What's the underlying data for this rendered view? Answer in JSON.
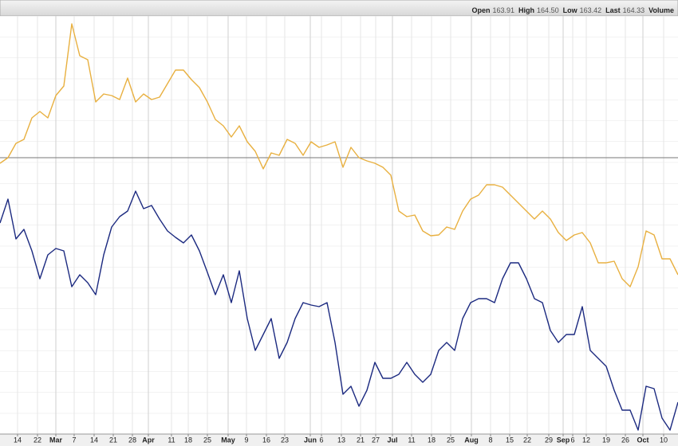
{
  "header": {
    "items": [
      {
        "label": "Open",
        "value": "163.91"
      },
      {
        "label": "High",
        "value": "164.50"
      },
      {
        "label": "Low",
        "value": "163.42"
      },
      {
        "label": "Last",
        "value": "164.33"
      },
      {
        "label": "Volume"
      }
    ]
  },
  "chart_data": {
    "type": "line",
    "xlim": [
      0,
      85
    ],
    "ylim": [
      0,
      525
    ],
    "grid": true,
    "reference_line": 347,
    "xticks": [
      {
        "value": 2.2,
        "label": "14"
      },
      {
        "value": 4.7,
        "label": "22"
      },
      {
        "value": 7.0,
        "label": "Mar"
      },
      {
        "value": 9.3,
        "label": "7"
      },
      {
        "value": 11.8,
        "label": "14"
      },
      {
        "value": 14.2,
        "label": "21"
      },
      {
        "value": 16.6,
        "label": "28"
      },
      {
        "value": 18.6,
        "label": "Apr"
      },
      {
        "value": 21.5,
        "label": "11"
      },
      {
        "value": 23.6,
        "label": "18"
      },
      {
        "value": 26.0,
        "label": "25"
      },
      {
        "value": 28.6,
        "label": "May"
      },
      {
        "value": 30.9,
        "label": "9"
      },
      {
        "value": 33.4,
        "label": "16"
      },
      {
        "value": 35.7,
        "label": "23"
      },
      {
        "value": 38.9,
        "label": "Jun"
      },
      {
        "value": 40.3,
        "label": "6"
      },
      {
        "value": 42.8,
        "label": "13"
      },
      {
        "value": 45.2,
        "label": "21"
      },
      {
        "value": 47.1,
        "label": "27"
      },
      {
        "value": 49.2,
        "label": "Jul"
      },
      {
        "value": 51.6,
        "label": "11"
      },
      {
        "value": 54.1,
        "label": "18"
      },
      {
        "value": 56.5,
        "label": "25"
      },
      {
        "value": 59.1,
        "label": "Aug"
      },
      {
        "value": 61.5,
        "label": "8"
      },
      {
        "value": 63.9,
        "label": "15"
      },
      {
        "value": 66.1,
        "label": "22"
      },
      {
        "value": 68.8,
        "label": "29"
      },
      {
        "value": 70.6,
        "label": "Sep"
      },
      {
        "value": 71.8,
        "label": "6"
      },
      {
        "value": 73.5,
        "label": "12"
      },
      {
        "value": 76.0,
        "label": "19"
      },
      {
        "value": 78.4,
        "label": "26"
      },
      {
        "value": 80.6,
        "label": "Oct"
      },
      {
        "value": 83.2,
        "label": "10"
      }
    ],
    "series": [
      {
        "color": "#e8b040",
        "values": [
          340,
          347,
          365,
          370,
          397,
          405,
          397,
          425,
          437,
          515,
          475,
          470,
          417,
          427,
          425,
          420,
          447,
          417,
          427,
          420,
          423,
          440,
          457,
          457,
          445,
          435,
          417,
          395,
          387,
          373,
          387,
          367,
          355,
          333,
          353,
          350,
          370,
          365,
          350,
          367,
          360,
          363,
          367,
          335,
          360,
          347,
          343,
          340,
          335,
          325,
          280,
          273,
          275,
          255,
          249,
          250,
          260,
          257,
          280,
          295,
          300,
          313,
          313,
          310,
          300,
          290,
          280,
          270,
          280,
          270,
          253,
          243,
          250,
          253,
          240,
          215,
          215,
          217,
          195,
          185,
          210,
          255,
          250,
          220,
          220,
          200
        ]
      },
      {
        "color": "#1c2a80",
        "values": [
          265,
          295,
          245,
          257,
          230,
          195,
          225,
          233,
          230,
          185,
          200,
          190,
          175,
          225,
          260,
          273,
          280,
          305,
          283,
          287,
          270,
          255,
          247,
          240,
          250,
          230,
          203,
          175,
          200,
          165,
          205,
          145,
          105,
          125,
          145,
          95,
          115,
          145,
          165,
          162,
          160,
          165,
          115,
          50,
          60,
          35,
          55,
          90,
          70,
          70,
          75,
          90,
          75,
          65,
          75,
          105,
          115,
          105,
          145,
          165,
          170,
          170,
          165,
          195,
          215,
          215,
          195,
          170,
          165,
          130,
          115,
          125,
          125,
          160,
          105,
          95,
          85,
          55,
          30,
          30,
          5,
          60,
          57,
          20,
          5,
          40
        ]
      }
    ]
  }
}
